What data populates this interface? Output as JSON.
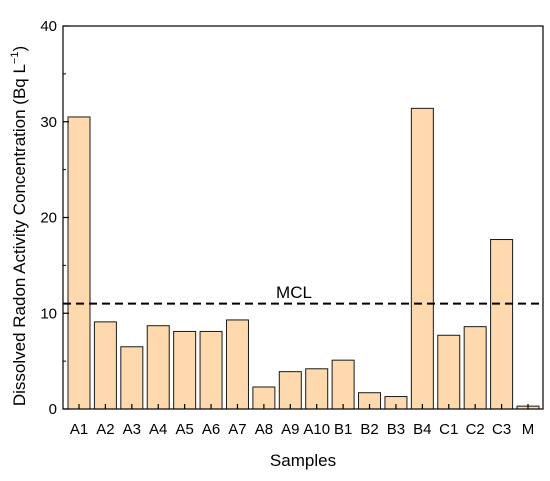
{
  "chart_data": {
    "type": "bar",
    "title": "",
    "xlabel": "Samples",
    "ylabel": "Dissolved Radon Activity Concentration (Bq L",
    "ylabel_sup": "−1",
    "ylabel_close": ")",
    "categories": [
      "A1",
      "A2",
      "A3",
      "A4",
      "A5",
      "A6",
      "A7",
      "A8",
      "A9",
      "A10",
      "B1",
      "B2",
      "B3",
      "B4",
      "C1",
      "C2",
      "C3",
      "M"
    ],
    "values": [
      30.5,
      9.1,
      6.5,
      8.7,
      8.1,
      8.1,
      9.3,
      2.3,
      3.9,
      4.2,
      5.1,
      1.7,
      1.3,
      31.4,
      7.7,
      8.6,
      17.7,
      0.3
    ],
    "ylim": [
      0,
      40
    ],
    "yticks": [
      0,
      10,
      20,
      30,
      40
    ],
    "grid": false,
    "legend": "none",
    "bar_color": "#fdd9ad",
    "bar_edge_color": "#1a1a1a",
    "reference_line": {
      "label": "MCL",
      "value": 11,
      "style": "dashed",
      "color": "#000000"
    }
  }
}
